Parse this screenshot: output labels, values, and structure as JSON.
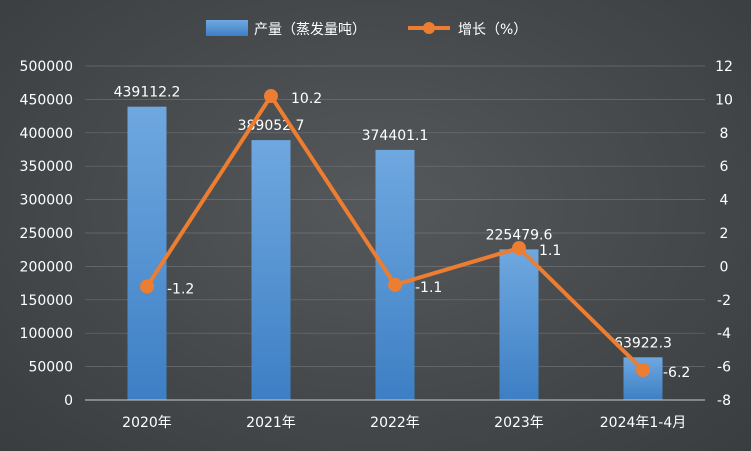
{
  "chart_data": {
    "type": "bar",
    "categories": [
      "2020年",
      "2021年",
      "2022年",
      "2023年",
      "2024年1-4月"
    ],
    "series": [
      {
        "name": "产量（蒸发量吨）",
        "type": "bar",
        "axis": "left",
        "values": [
          439112.2,
          389052.7,
          374401.1,
          225479.6,
          63922.3
        ],
        "labels": [
          "439112.2",
          "389052.7",
          "374401.1",
          "225479.6",
          "63922.3"
        ],
        "color": "#5b9bd5"
      },
      {
        "name": "增长（%）",
        "type": "line",
        "axis": "right",
        "values": [
          -1.2,
          10.2,
          -1.1,
          1.1,
          -6.2
        ],
        "labels": [
          "-1.2",
          "10.2",
          "-1.1",
          "1.1",
          "-6.2"
        ],
        "color": "#ed7d31"
      }
    ],
    "y_left": {
      "min": 0,
      "max": 500000,
      "step": 50000,
      "ticks": [
        "0",
        "50000",
        "100000",
        "150000",
        "200000",
        "250000",
        "300000",
        "350000",
        "400000",
        "450000",
        "500000"
      ]
    },
    "y_right": {
      "min": -8,
      "max": 12,
      "step": 2,
      "ticks": [
        "-8",
        "-6",
        "-4",
        "-2",
        "0",
        "2",
        "4",
        "6",
        "8",
        "10",
        "12"
      ]
    },
    "grid": true,
    "legend": "top-center"
  }
}
